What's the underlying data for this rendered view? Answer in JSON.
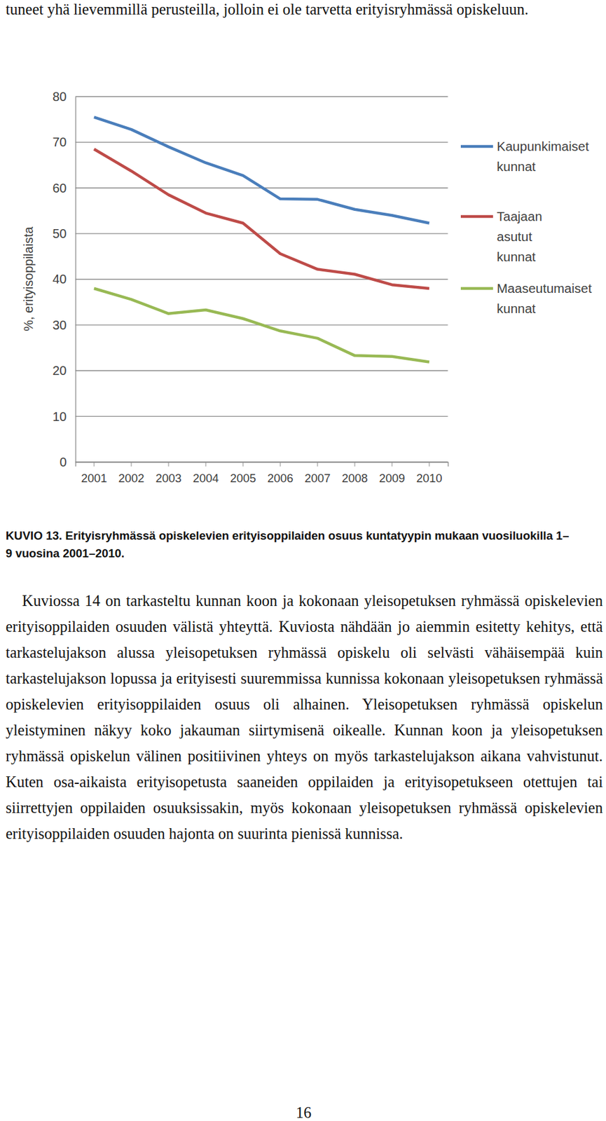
{
  "intro_text": "tuneet yhä lievemmillä perusteilla, jolloin ei ole tarvetta erityisryhmässä opiskeluun.",
  "chart_data": {
    "type": "line",
    "y_label": "%, erityisoppilaista",
    "categories": [
      "2001",
      "2002",
      "2003",
      "2004",
      "2005",
      "2006",
      "2007",
      "2008",
      "2009",
      "2010"
    ],
    "series": [
      {
        "name": "Kaupunkimaiset kunnat",
        "color": "#4a7ebb",
        "values": [
          75.5,
          72.8,
          69.0,
          65.5,
          62.7,
          57.6,
          57.5,
          55.3,
          54.0,
          52.3
        ]
      },
      {
        "name": "Taajaan asutut kunnat",
        "color": "#be4b48",
        "values": [
          68.5,
          63.7,
          58.5,
          54.5,
          52.3,
          45.6,
          42.2,
          41.1,
          38.8,
          38.0
        ]
      },
      {
        "name": "Maaseutumaiset kunnat",
        "color": "#98b954",
        "values": [
          38.0,
          35.6,
          32.5,
          33.3,
          31.4,
          28.7,
          27.1,
          23.3,
          23.1,
          21.9
        ]
      }
    ],
    "ylim": [
      0,
      80
    ],
    "yticks": [
      0,
      10,
      20,
      30,
      40,
      50,
      60,
      70,
      80
    ],
    "grid": true,
    "legend": "right"
  },
  "caption": "KUVIO 13. Erityisryhmässä opiskelevien erityisoppilaiden osuus kuntatyypin mukaan vuosiluokilla 1–9 vuosina 2001–2010.",
  "body_text": "Kuviossa 14 on tarkasteltu kunnan koon ja kokonaan yleisopetuksen ryhmässä opiskelevien erityisoppilaiden osuuden välistä yhteyttä. Kuviosta nähdään jo aiemmin esitetty kehitys, että tarkastelujakson alussa yleisopetuksen ryhmässä opiskelu oli selvästi vähäisempää kuin tarkastelujakson lopussa ja erityisesti suuremmissa kunnissa kokonaan yleisopetuksen ryhmässä opiskelevien erityisoppilaiden osuus oli alhainen. Yleisopetuksen ryhmässä opiskelun yleistyminen näkyy koko jakauman siirtymisenä oikealle. Kunnan koon ja yleisopetuksen ryhmässä opiskelun välinen positiivinen yhteys on myös tarkastelujakson aikana vahvistunut. Kuten osa-aikaista erityisopetusta saaneiden oppilaiden ja erityisopetukseen otettujen tai siirrettyjen oppilaiden osuuksissakin, myös kokonaan yleisopetuksen ryhmässä opiskelevien erityisoppilaiden osuuden hajonta on suurinta pienissä kunnissa.",
  "page_number": "16"
}
